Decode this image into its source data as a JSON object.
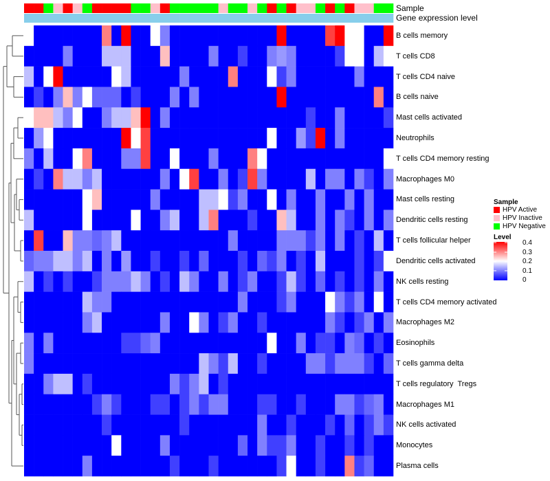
{
  "chart_data": {
    "type": "heatmap",
    "title": "",
    "annotation_tracks": [
      "Sample",
      "Gene expression level"
    ],
    "sample_legend": {
      "title": "Sample",
      "entries": [
        {
          "label": "HPV Active",
          "color": "#ff0000"
        },
        {
          "label": "HPV Inactive",
          "color": "#ffc0cb"
        },
        {
          "label": "HPV Negative",
          "color": "#00ff00"
        }
      ]
    },
    "sample_annotation": [
      "A",
      "A",
      "N",
      "I",
      "A",
      "I",
      "N",
      "A",
      "A",
      "A",
      "A",
      "N",
      "N",
      "I",
      "A",
      "N",
      "N",
      "N",
      "N",
      "N",
      "I",
      "N",
      "N",
      "I",
      "N",
      "A",
      "N",
      "A",
      "I",
      "I",
      "N",
      "A",
      "N",
      "A",
      "I",
      "I",
      "N",
      "N"
    ],
    "gene_expression_color": "#87ceeb",
    "level_legend": {
      "title": "Level",
      "ticks": [
        "0.4",
        "0.3",
        "0.2",
        "0.1",
        "0"
      ],
      "range": [
        0,
        0.4
      ],
      "colors": [
        "#0000ff",
        "#ffffff",
        "#ff0000"
      ]
    },
    "rows": [
      "B cells memory",
      "T cells CD8",
      "T cells CD4 naive",
      "B cells naive",
      "Mast cells activated",
      "Neutrophils",
      "T cells CD4 memory resting",
      "Macrophages M0",
      "Mast cells resting",
      "Dendritic cells resting",
      "T cells follicular helper",
      "Dendritic cells activated",
      "NK cells resting",
      "T cells CD4 memory activated",
      "Macrophages M2",
      "Eosinophils",
      "T cells gamma delta",
      "T cells regulatory  Tregs",
      "Macrophages M1",
      "NK cells activated",
      "Monocytes",
      "Plasma cells"
    ],
    "n_columns": 38,
    "values": [
      [
        0.2,
        0,
        0,
        0,
        0,
        0,
        0,
        0,
        0.3,
        0,
        0.4,
        0,
        0,
        0.2,
        0.1,
        0,
        0,
        0,
        0,
        0,
        0,
        0,
        0,
        0,
        0,
        0,
        0.4,
        0,
        0,
        0,
        0,
        0.35,
        0.4,
        0.2,
        0.2,
        0,
        0,
        0.4
      ],
      [
        0,
        0,
        0,
        0,
        0.1,
        0,
        0,
        0,
        0.15,
        0.15,
        0.15,
        0,
        0,
        0,
        0.25,
        0,
        0,
        0,
        0,
        0.1,
        0,
        0,
        0.05,
        0,
        0,
        0.1,
        0.12,
        0.1,
        0,
        0,
        0,
        0,
        0.05,
        0.2,
        0.2,
        0,
        0.15,
        0.2
      ],
      [
        0.15,
        0,
        0.2,
        0.4,
        0,
        0,
        0,
        0,
        0,
        0.2,
        0.15,
        0,
        0,
        0,
        0,
        0,
        0.1,
        0,
        0,
        0,
        0,
        0.3,
        0,
        0,
        0,
        0.2,
        0.05,
        0.1,
        0,
        0,
        0,
        0,
        0,
        0,
        0.1,
        0,
        0,
        0
      ],
      [
        0,
        0.05,
        0,
        0.1,
        0.25,
        0.1,
        0.2,
        0.08,
        0.08,
        0.08,
        0,
        0.05,
        0,
        0,
        0,
        0.1,
        0,
        0.1,
        0,
        0,
        0,
        0,
        0,
        0,
        0,
        0,
        0.4,
        0,
        0,
        0,
        0,
        0,
        0,
        0,
        0,
        0,
        0.3,
        0
      ],
      [
        0.2,
        0.25,
        0.25,
        0.15,
        0.1,
        0.2,
        0,
        0,
        0.1,
        0.15,
        0.15,
        0.25,
        0.4,
        0,
        0.1,
        0,
        0,
        0,
        0,
        0,
        0,
        0,
        0,
        0,
        0,
        0,
        0,
        0,
        0,
        0.05,
        0,
        0,
        0.1,
        0,
        0,
        0,
        0,
        0.05
      ],
      [
        0,
        0.12,
        0.2,
        0,
        0,
        0,
        0,
        0,
        0,
        0,
        0.4,
        0.2,
        0.35,
        0,
        0,
        0,
        0,
        0,
        0,
        0,
        0,
        0,
        0,
        0,
        0,
        0.2,
        0,
        0,
        0.12,
        0.05,
        0.4,
        0,
        0.1,
        0,
        0,
        0,
        0,
        0
      ],
      [
        0.1,
        0,
        0.15,
        0,
        0,
        0.2,
        0.3,
        0,
        0,
        0,
        0.1,
        0.1,
        0.35,
        0,
        0,
        0.2,
        0,
        0,
        0,
        0.1,
        0,
        0,
        0,
        0.3,
        0.2,
        0,
        0,
        0,
        0,
        0,
        0,
        0,
        0,
        0,
        0,
        0,
        0,
        0.2
      ],
      [
        0,
        0.05,
        0,
        0.3,
        0.15,
        0.15,
        0.1,
        0.15,
        0,
        0,
        0,
        0,
        0,
        0,
        0.1,
        0,
        0.2,
        0.35,
        0,
        0,
        0.1,
        0,
        0.05,
        0.35,
        0.1,
        0,
        0,
        0,
        0,
        0.15,
        0,
        0.1,
        0.1,
        0,
        0.1,
        0.05,
        0,
        0.1
      ],
      [
        0,
        0,
        0,
        0,
        0,
        0,
        0.2,
        0.25,
        0,
        0,
        0,
        0,
        0,
        0.1,
        0,
        0,
        0,
        0,
        0.15,
        0.15,
        0.2,
        0.05,
        0.1,
        0,
        0,
        0.2,
        0,
        0.1,
        0,
        0,
        0.1,
        0,
        0,
        0.1,
        0,
        0.1,
        0,
        0
      ],
      [
        0.15,
        0,
        0,
        0,
        0,
        0,
        0.2,
        0,
        0,
        0,
        0,
        0.2,
        0,
        0,
        0.1,
        0.15,
        0,
        0,
        0.15,
        0.3,
        0,
        0,
        0,
        0.05,
        0,
        0,
        0.25,
        0.15,
        0,
        0,
        0.1,
        0,
        0.1,
        0.05,
        0,
        0.1,
        0,
        0.1
      ],
      [
        0,
        0.35,
        0,
        0,
        0.25,
        0.1,
        0.1,
        0.08,
        0.1,
        0.15,
        0,
        0,
        0,
        0,
        0,
        0,
        0,
        0,
        0,
        0,
        0,
        0.1,
        0,
        0,
        0,
        0,
        0.1,
        0.1,
        0.1,
        0.05,
        0.1,
        0,
        0.1,
        0,
        0.05,
        0,
        0.15,
        0
      ],
      [
        0.08,
        0.1,
        0.1,
        0.15,
        0.15,
        0.1,
        0.15,
        0,
        0.1,
        0,
        0.12,
        0,
        0,
        0.05,
        0,
        0,
        0.05,
        0,
        0.08,
        0,
        0,
        0,
        0.05,
        0,
        0.08,
        0.05,
        0.1,
        0,
        0.05,
        0,
        0.15,
        0,
        0,
        0,
        0.05,
        0,
        0.05,
        0.2
      ],
      [
        0.15,
        0,
        0.05,
        0,
        0.05,
        0,
        0,
        0.05,
        0.1,
        0.1,
        0.1,
        0.15,
        0.1,
        0,
        0.05,
        0,
        0.15,
        0.1,
        0,
        0,
        0.1,
        0,
        0.05,
        0.1,
        0,
        0,
        0.05,
        0.15,
        0.05,
        0,
        0.08,
        0,
        0.05,
        0,
        0.05,
        0,
        0.1,
        0
      ],
      [
        0,
        0,
        0,
        0,
        0,
        0,
        0.15,
        0.1,
        0.1,
        0,
        0,
        0,
        0,
        0,
        0,
        0,
        0,
        0,
        0,
        0,
        0,
        0,
        0.1,
        0,
        0,
        0,
        0.05,
        0.1,
        0,
        0,
        0,
        0.2,
        0.1,
        0.05,
        0.1,
        0,
        0.2,
        0
      ],
      [
        0,
        0,
        0,
        0,
        0,
        0,
        0.1,
        0.15,
        0,
        0,
        0,
        0,
        0,
        0,
        0.1,
        0,
        0,
        0.2,
        0.1,
        0,
        0.05,
        0.1,
        0,
        0,
        0.05,
        0,
        0,
        0,
        0,
        0,
        0,
        0.1,
        0.05,
        0,
        0.05,
        0.1,
        0,
        0.1
      ],
      [
        0.1,
        0,
        0.1,
        0,
        0,
        0,
        0,
        0,
        0,
        0,
        0.05,
        0.05,
        0.08,
        0.1,
        0,
        0,
        0,
        0,
        0,
        0,
        0,
        0,
        0,
        0,
        0,
        0.2,
        0,
        0,
        0.1,
        0,
        0.05,
        0.05,
        0,
        0.1,
        0.08,
        0,
        0.05,
        0
      ],
      [
        0.1,
        0,
        0,
        0,
        0,
        0,
        0,
        0,
        0,
        0,
        0,
        0,
        0,
        0,
        0,
        0,
        0,
        0,
        0.15,
        0.1,
        0.05,
        0.15,
        0,
        0,
        0.05,
        0,
        0,
        0,
        0,
        0.1,
        0.1,
        0.05,
        0.1,
        0.1,
        0.1,
        0.05,
        0,
        0.08
      ],
      [
        0,
        0,
        0.1,
        0.15,
        0.15,
        0,
        0.05,
        0,
        0,
        0,
        0,
        0,
        0,
        0,
        0,
        0.1,
        0.05,
        0.1,
        0.15,
        0,
        0.05,
        0,
        0,
        0,
        0,
        0,
        0,
        0,
        0,
        0,
        0,
        0,
        0,
        0,
        0,
        0,
        0,
        0
      ],
      [
        0,
        0,
        0,
        0,
        0,
        0,
        0,
        0.05,
        0.1,
        0.05,
        0,
        0,
        0,
        0.05,
        0.05,
        0,
        0.05,
        0.1,
        0.05,
        0.1,
        0.1,
        0,
        0,
        0,
        0.05,
        0.05,
        0,
        0,
        0.05,
        0,
        0,
        0,
        0.1,
        0.1,
        0.05,
        0.08,
        0.1,
        0
      ],
      [
        0,
        0,
        0,
        0,
        0,
        0,
        0,
        0,
        0.05,
        0,
        0,
        0,
        0,
        0,
        0,
        0,
        0.05,
        0,
        0,
        0,
        0,
        0,
        0,
        0,
        0.1,
        0,
        0,
        0.05,
        0,
        0,
        0,
        0.05,
        0,
        0.08,
        0,
        0.05,
        0.1,
        0.05
      ],
      [
        0,
        0,
        0,
        0,
        0,
        0,
        0,
        0,
        0,
        0.2,
        0,
        0,
        0,
        0,
        0.1,
        0,
        0,
        0,
        0,
        0,
        0,
        0,
        0.08,
        0,
        0.1,
        0.05,
        0.05,
        0.1,
        0,
        0,
        0.05,
        0,
        0,
        0.05,
        0,
        0.05,
        0,
        0
      ],
      [
        0,
        0,
        0,
        0,
        0,
        0,
        0.1,
        0,
        0,
        0,
        0,
        0,
        0,
        0,
        0,
        0.05,
        0,
        0,
        0,
        0.05,
        0,
        0,
        0,
        0,
        0,
        0,
        0.05,
        0.2,
        0,
        0,
        0.05,
        0,
        0,
        0.3,
        0.05,
        0.08,
        0,
        0
      ]
    ]
  }
}
